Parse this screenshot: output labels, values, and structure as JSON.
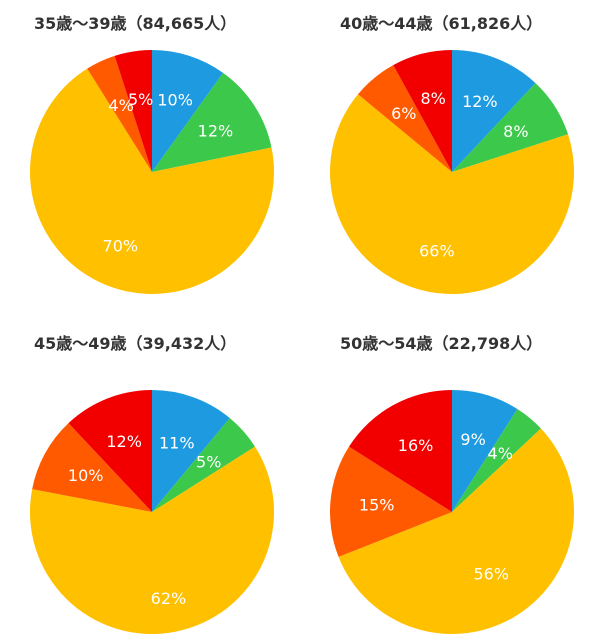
{
  "chart_data": [
    {
      "type": "pie",
      "title": "35歳～39歳（84,665人）",
      "slices": [
        {
          "label": "10%",
          "value": 10,
          "color": "#1E9BE0"
        },
        {
          "label": "12%",
          "value": 12,
          "color": "#3CC84A"
        },
        {
          "label": "70%",
          "value": 70,
          "color": "#FFC000"
        },
        {
          "label": "4%",
          "value": 4,
          "color": "#FF5A00"
        },
        {
          "label": "5%",
          "value": 5,
          "color": "#F20000"
        }
      ]
    },
    {
      "type": "pie",
      "title": "40歳～44歳（61,826人）",
      "slices": [
        {
          "label": "12%",
          "value": 12,
          "color": "#1E9BE0"
        },
        {
          "label": "8%",
          "value": 8,
          "color": "#3CC84A"
        },
        {
          "label": "66%",
          "value": 66,
          "color": "#FFC000"
        },
        {
          "label": "6%",
          "value": 6,
          "color": "#FF5A00"
        },
        {
          "label": "8%",
          "value": 8,
          "color": "#F20000"
        }
      ]
    },
    {
      "type": "pie",
      "title": "45歳～49歳（39,432人）",
      "slices": [
        {
          "label": "11%",
          "value": 11,
          "color": "#1E9BE0"
        },
        {
          "label": "5%",
          "value": 5,
          "color": "#3CC84A"
        },
        {
          "label": "62%",
          "value": 62,
          "color": "#FFC000"
        },
        {
          "label": "10%",
          "value": 10,
          "color": "#FF5A00"
        },
        {
          "label": "12%",
          "value": 12,
          "color": "#F20000"
        }
      ]
    },
    {
      "type": "pie",
      "title": "50歳～54歳（22,798人）",
      "slices": [
        {
          "label": "9%",
          "value": 9,
          "color": "#1E9BE0"
        },
        {
          "label": "4%",
          "value": 4,
          "color": "#3CC84A"
        },
        {
          "label": "56%",
          "value": 56,
          "color": "#FFC000"
        },
        {
          "label": "15%",
          "value": 15,
          "color": "#FF5A00"
        },
        {
          "label": "16%",
          "value": 16,
          "color": "#F20000"
        }
      ]
    }
  ]
}
